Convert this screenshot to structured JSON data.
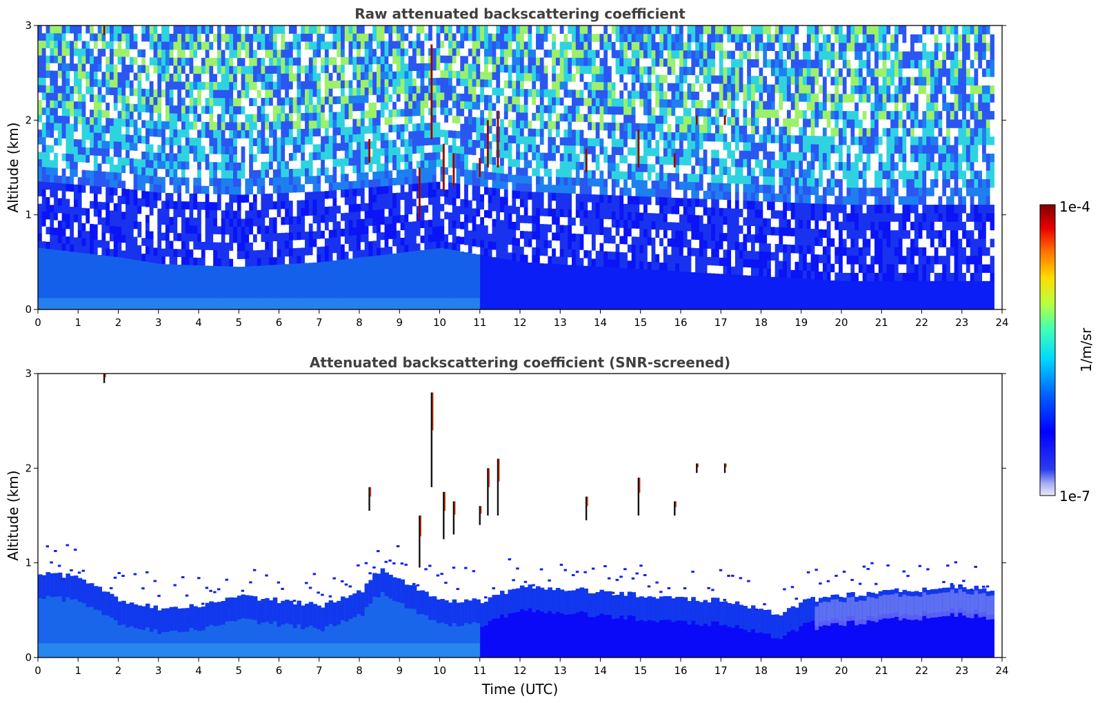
{
  "figure": {
    "xlabel": "Time (UTC)",
    "colorbar": {
      "label": "1/m/sr",
      "max_label": "1e-4",
      "min_label": "1e-7",
      "scale": "log",
      "range": [
        1e-07,
        0.0001
      ],
      "colormap": "jet"
    }
  },
  "chart_data": [
    {
      "type": "heatmap",
      "title": "Raw attenuated backscattering coefficient",
      "xlabel": "",
      "ylabel": "Altitude (km)",
      "xlim": [
        0,
        24
      ],
      "ylim": [
        0,
        3
      ],
      "x_ticks": [
        "0",
        "1",
        "2",
        "3",
        "4",
        "5",
        "6",
        "7",
        "8",
        "9",
        "10",
        "11",
        "12",
        "13",
        "14",
        "15",
        "16",
        "17",
        "18",
        "19",
        "20",
        "21",
        "22",
        "23",
        "24"
      ],
      "y_ticks": [
        "0",
        "1",
        "2",
        "3"
      ],
      "data_end_hour": 23.8,
      "description_values": {
        "boundary_layer_top_km": [
          [
            0,
            0.65
          ],
          [
            2,
            0.55
          ],
          [
            3,
            0.48
          ],
          [
            5,
            0.45
          ],
          [
            7,
            0.5
          ],
          [
            9,
            0.6
          ],
          [
            10,
            0.65
          ],
          [
            12,
            0.5
          ],
          [
            14,
            0.45
          ],
          [
            16,
            0.4
          ],
          [
            18,
            0.35
          ],
          [
            20,
            0.3
          ],
          [
            22,
            0.3
          ],
          [
            23.8,
            0.3
          ]
        ],
        "cloud_cells": [
          {
            "t": 1.65,
            "alt": [
              2.9,
              3.0
            ]
          },
          {
            "t": 8.25,
            "alt": [
              1.55,
              1.8
            ]
          },
          {
            "t": 9.5,
            "alt": [
              0.95,
              1.5
            ]
          },
          {
            "t": 9.8,
            "alt": [
              1.8,
              2.8
            ]
          },
          {
            "t": 10.1,
            "alt": [
              1.25,
              1.75
            ]
          },
          {
            "t": 10.35,
            "alt": [
              1.3,
              1.65
            ]
          },
          {
            "t": 11.0,
            "alt": [
              1.4,
              1.6
            ]
          },
          {
            "t": 11.2,
            "alt": [
              1.5,
              2.0
            ]
          },
          {
            "t": 11.45,
            "alt": [
              1.5,
              2.1
            ]
          },
          {
            "t": 13.65,
            "alt": [
              1.45,
              1.7
            ]
          },
          {
            "t": 14.95,
            "alt": [
              1.5,
              1.9
            ]
          },
          {
            "t": 15.85,
            "alt": [
              1.5,
              1.65
            ]
          },
          {
            "t": 16.4,
            "alt": [
              1.95,
              2.05
            ]
          },
          {
            "t": 17.1,
            "alt": [
              1.95,
              2.05
            ]
          }
        ]
      }
    },
    {
      "type": "heatmap",
      "title": "Attenuated backscattering coefficient (SNR-screened)",
      "xlabel": "Time (UTC)",
      "ylabel": "Altitude (km)",
      "xlim": [
        0,
        24
      ],
      "ylim": [
        0,
        3
      ],
      "x_ticks": [
        "0",
        "1",
        "2",
        "3",
        "4",
        "5",
        "6",
        "7",
        "8",
        "9",
        "10",
        "11",
        "12",
        "13",
        "14",
        "15",
        "16",
        "17",
        "18",
        "19",
        "20",
        "21",
        "22",
        "23",
        "24"
      ],
      "y_ticks": [
        "0",
        "1",
        "2",
        "3"
      ],
      "data_end_hour": 23.8,
      "description_values": {
        "screened_layer_top_km": [
          [
            0,
            0.9
          ],
          [
            1,
            0.85
          ],
          [
            2,
            0.6
          ],
          [
            3,
            0.52
          ],
          [
            4,
            0.55
          ],
          [
            5,
            0.65
          ],
          [
            6,
            0.6
          ],
          [
            7,
            0.55
          ],
          [
            8,
            0.7
          ],
          [
            8.5,
            0.95
          ],
          [
            9,
            0.8
          ],
          [
            10,
            0.6
          ],
          [
            11,
            0.6
          ],
          [
            12,
            0.75
          ],
          [
            13,
            0.72
          ],
          [
            14,
            0.7
          ],
          [
            15,
            0.65
          ],
          [
            16,
            0.62
          ],
          [
            17,
            0.6
          ],
          [
            18,
            0.5
          ],
          [
            18.5,
            0.45
          ],
          [
            19,
            0.6
          ],
          [
            20,
            0.65
          ],
          [
            21,
            0.7
          ],
          [
            22,
            0.72
          ],
          [
            23,
            0.75
          ],
          [
            23.8,
            0.7
          ]
        ]
      }
    }
  ]
}
